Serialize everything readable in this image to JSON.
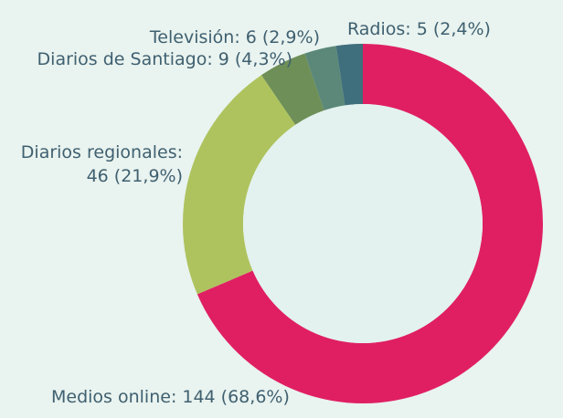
{
  "chart_data": {
    "type": "pie",
    "donut": true,
    "title": "",
    "categories": [
      "Medios online",
      "Diarios regionales",
      "Diarios de Santiago",
      "Televisión",
      "Radios"
    ],
    "values": [
      144,
      46,
      9,
      6,
      5
    ],
    "percent_labels": [
      "68,6%",
      "21,9%",
      "4,3%",
      "2,9%",
      "2,4%"
    ],
    "labels": [
      "Medios online: 144 (68,6%)",
      [
        "Diarios regionales:",
        "46 (21,9%)"
      ],
      "Diarios de Santiago: 9 (4,3%)",
      "Televisión: 6 (2,9%)",
      "Radios: 5 (2,4%)"
    ],
    "colors": [
      "#e01f63",
      "#aec35e",
      "#6e8f57",
      "#5b8878",
      "#3f6e7c"
    ],
    "hole_color": "#e3f2ee",
    "background": "#e9f3ef",
    "legend": "none"
  }
}
